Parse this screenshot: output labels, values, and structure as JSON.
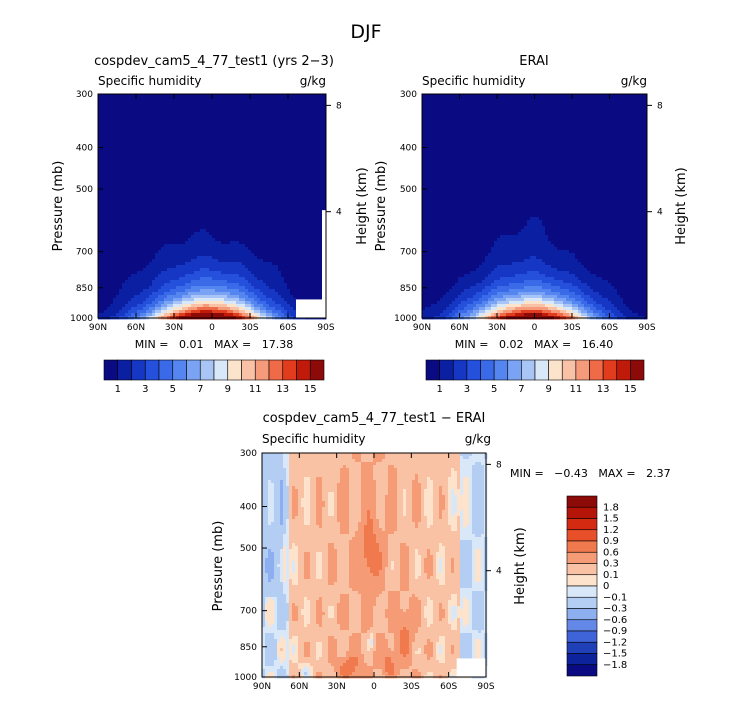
{
  "figure_title": "DJF",
  "panels": [
    {
      "title": "cospdev_cam5_4_77_test1 (yrs 2−3)",
      "subtitle_left": "Specific humidity",
      "subtitle_right": "g/kg",
      "stats": "MIN =   0.01   MAX =   17.38",
      "ylabel_left": "Pressure (mb)",
      "ylabel_right": "Height (km)"
    },
    {
      "title": "ERAI",
      "subtitle_left": "Specific humidity",
      "subtitle_right": "g/kg",
      "stats": "MIN =   0.02   MAX =   16.40",
      "ylabel_left": "Pressure (mb)",
      "ylabel_right": "Height (km)"
    },
    {
      "title": "cospdev_cam5_4_77_test1 − ERAI",
      "subtitle_left": "Specific humidity",
      "subtitle_right": "g/kg",
      "stats": "MIN =   −0.43   MAX =   2.37",
      "ylabel_left": "Pressure (mb)",
      "ylabel_right": "Height (km)"
    }
  ],
  "chart_data": [
    {
      "type": "heatmap",
      "panel": "cospdev_cam5_4_77_test1 (yrs 2−3)",
      "x_ticks": [
        "90N",
        "60N",
        "30N",
        "0",
        "30S",
        "60S",
        "90S"
      ],
      "x_values": [
        90,
        60,
        30,
        0,
        -30,
        -60,
        -90
      ],
      "y_ticks": [
        300,
        400,
        500,
        700,
        850,
        1000
      ],
      "y_scale": "log-pressure, reversed",
      "ylim": [
        1000,
        300
      ],
      "height_ticks_km": [
        4,
        8
      ],
      "min": 0.01,
      "max": 17.38,
      "profile": {
        "peak_lat": 3,
        "peak_value": 17.38,
        "halfwidth_lat_surface": 32,
        "scale_height_hpa": 115,
        "masked_region": "60S–90S below 850 mb"
      }
    },
    {
      "type": "heatmap",
      "panel": "ERAI",
      "x_ticks": [
        "90N",
        "60N",
        "30N",
        "0",
        "30S",
        "60S",
        "90S"
      ],
      "x_values": [
        90,
        60,
        30,
        0,
        -30,
        -60,
        -90
      ],
      "y_ticks": [
        300,
        400,
        500,
        700,
        850,
        1000
      ],
      "y_scale": "log-pressure, reversed",
      "ylim": [
        1000,
        300
      ],
      "height_ticks_km": [
        4,
        8
      ],
      "min": 0.02,
      "max": 16.4,
      "profile": {
        "peak_lat": 3,
        "peak_value": 16.4,
        "halfwidth_lat_surface": 32,
        "scale_height_hpa": 115
      }
    },
    {
      "type": "heatmap",
      "panel": "cospdev_cam5_4_77_test1 − ERAI",
      "x_ticks": [
        "90N",
        "60N",
        "30N",
        "0",
        "30S",
        "60S",
        "90S"
      ],
      "x_values": [
        90,
        60,
        30,
        0,
        -30,
        -60,
        -90
      ],
      "y_ticks": [
        300,
        400,
        500,
        700,
        850,
        1000
      ],
      "y_scale": "log-pressure, reversed",
      "ylim": [
        1000,
        300
      ],
      "height_ticks_km": [
        4,
        8
      ],
      "min": -0.43,
      "max": 2.37
    }
  ],
  "colorbar_abs": {
    "labels": [
      "1",
      "3",
      "5",
      "7",
      "9",
      "11",
      "13",
      "15"
    ],
    "levels": [
      1,
      2,
      3,
      4,
      5,
      6,
      7,
      8,
      9,
      10,
      11,
      12,
      13,
      14,
      15
    ],
    "colors": [
      "#0a0a82",
      "#0b1fa3",
      "#1636c4",
      "#2550db",
      "#3b6ae8",
      "#5585ef",
      "#7aa3f3",
      "#a9c5f5",
      "#d9e8f9",
      "#fbe3cc",
      "#f9c1a6",
      "#f59a7a",
      "#ef6a47",
      "#e03c1d",
      "#c01a0a",
      "#8c0a08"
    ]
  },
  "colorbar_diff": {
    "labels": [
      "1.8",
      "1.5",
      "1.2",
      "0.9",
      "0.6",
      "0.3",
      "0.1",
      "0",
      "−0.1",
      "−0.3",
      "−0.6",
      "−0.9",
      "−1.2",
      "−1.5",
      "−1.8"
    ],
    "levels": [
      1.8,
      1.5,
      1.2,
      0.9,
      0.6,
      0.3,
      0.1,
      0,
      -0.1,
      -0.3,
      -0.6,
      -0.9,
      -1.2,
      -1.5,
      -1.8
    ],
    "colors": [
      "#8c0a08",
      "#b51408",
      "#d42a12",
      "#e8502a",
      "#f07a4e",
      "#f59c76",
      "#f9c2a4",
      "#fde2cc",
      "#d9e8f9",
      "#b4cdf3",
      "#8daeef",
      "#6488e8",
      "#3f63d8",
      "#2040b8",
      "#0d239c",
      "#0a0a82"
    ]
  }
}
